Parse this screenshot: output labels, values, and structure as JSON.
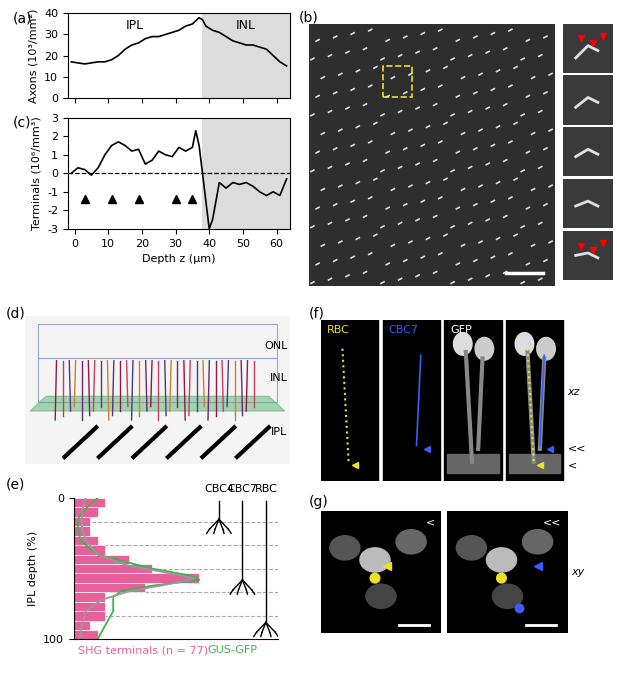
{
  "chart_data": [
    {
      "type": "line",
      "title": "(a)",
      "ylabel": "Axons (10³/mm²)",
      "color": "#000000",
      "x": [
        -1,
        1,
        3,
        5,
        7,
        9,
        11,
        13,
        15,
        17,
        19,
        21,
        23,
        25,
        27,
        29,
        31,
        33,
        35,
        37,
        38,
        39,
        41,
        43,
        45,
        47,
        49,
        51,
        53,
        55,
        57,
        59,
        61,
        63
      ],
      "values": [
        17,
        16.5,
        16,
        16.5,
        17,
        17,
        18,
        20,
        23,
        25,
        26,
        28,
        29,
        29,
        30,
        31,
        32,
        34,
        35,
        38,
        37,
        34,
        32,
        31,
        29,
        27,
        26,
        25,
        25,
        24,
        23,
        20,
        17,
        15
      ],
      "xlim": [
        -2,
        64
      ],
      "xticks": [
        0,
        10,
        20,
        30,
        40,
        50,
        60
      ],
      "ylim": [
        0,
        40
      ],
      "yticks": [
        0,
        10,
        20,
        30,
        40
      ],
      "tick_labels": "y",
      "inl_region": [
        38,
        64
      ],
      "annotations": [
        "IPL",
        "INL"
      ]
    },
    {
      "type": "line",
      "title": "(c)",
      "xlabel": "Depth z (µm)",
      "ylabel": "Terminals (10⁶/mm³)",
      "color": "#000000",
      "x": [
        -1,
        1,
        3,
        5,
        7,
        9,
        11,
        13,
        15,
        17,
        19,
        21,
        23,
        25,
        27,
        29,
        31,
        33,
        35,
        36,
        37,
        38,
        39,
        40,
        41,
        43,
        45,
        47,
        49,
        51,
        53,
        55,
        57,
        59,
        61,
        63
      ],
      "values": [
        0,
        0.3,
        0.2,
        -0.1,
        0.3,
        1,
        1.5,
        1.7,
        1.5,
        1.2,
        1.3,
        0.5,
        0.7,
        1.2,
        1.0,
        0.9,
        1.4,
        1.2,
        1.4,
        2.3,
        1.5,
        0,
        -1.5,
        -3,
        -2.5,
        -0.5,
        -0.8,
        -0.5,
        -0.6,
        -0.5,
        -0.7,
        -1,
        -1.2,
        -1,
        -1.2,
        -0.3
      ],
      "xlim": [
        -2,
        64
      ],
      "xticks": [
        0,
        10,
        20,
        30,
        40,
        50,
        60
      ],
      "ylim": [
        -3,
        3
      ],
      "yticks": [
        -3,
        -2,
        -1,
        0,
        1,
        2,
        3
      ],
      "inl_region": [
        38,
        64
      ],
      "reference_line": 0,
      "arrowheads": {
        "x": [
          3,
          11,
          19,
          30,
          35
        ],
        "y": -1.4
      }
    },
    {
      "type": "histogram",
      "title": "(e)",
      "orientation": "horizontal",
      "ylabel": "IPL depth (%)",
      "name": "SHG terminals (n = 77)",
      "color": "#e8609a",
      "bins": [
        0,
        6.7,
        13.3,
        20,
        26.7,
        33.3,
        40,
        46.7,
        53.3,
        60,
        66.7,
        73.3,
        80,
        86.7,
        93.3,
        100
      ],
      "counts": [
        4,
        3,
        2,
        2,
        3,
        4,
        7,
        10,
        16,
        9,
        4,
        4,
        4,
        2,
        3
      ],
      "series": [
        {
          "name": "GUS-GFP",
          "color": "#3cb44b",
          "type": "line",
          "depth": [
            0,
            5,
            10,
            15,
            20,
            30,
            40,
            50,
            55,
            58,
            62,
            66,
            70,
            80,
            90,
            100
          ],
          "values": [
            3,
            2,
            1,
            0.5,
            0.5,
            0.8,
            3,
            10,
            15,
            16,
            10,
            6,
            5,
            5,
            4,
            3
          ]
        },
        {
          "name": null,
          "color": "#999999",
          "type": "line",
          "depth": [
            0,
            10,
            20,
            30,
            40,
            48,
            53,
            57,
            61,
            66,
            72,
            80,
            90,
            100
          ],
          "values": [
            1.5,
            1,
            1,
            1.5,
            3,
            7,
            12,
            15.5,
            12,
            7,
            3.5,
            1.5,
            1,
            0.8
          ]
        }
      ],
      "xlim": [
        0,
        26
      ],
      "ylim": [
        100,
        0
      ],
      "yticks": [
        0,
        100
      ],
      "tick_labels": "y",
      "strata": [
        16.7,
        33.3,
        50,
        66.7,
        83.3
      ],
      "annotations": [
        "CBC4",
        "CBC7",
        "RBC"
      ]
    }
  ],
  "images": {
    "b": {
      "title": "(b)"
    },
    "d": {
      "title": "(d)",
      "labels": [
        "ONL",
        "INL",
        "IPL"
      ]
    },
    "f": {
      "title": "(f)",
      "channels": [
        {
          "name": "RBC",
          "color": "#f0e020"
        },
        {
          "name": "CBC7",
          "color": "#3a5cff"
        },
        {
          "name": "GFP",
          "color": "#ffffff"
        }
      ],
      "labels": [
        "xz",
        "<<",
        "<"
      ]
    },
    "g": {
      "title": "(g)",
      "labels": [
        "<",
        "<<",
        "xy"
      ]
    }
  }
}
